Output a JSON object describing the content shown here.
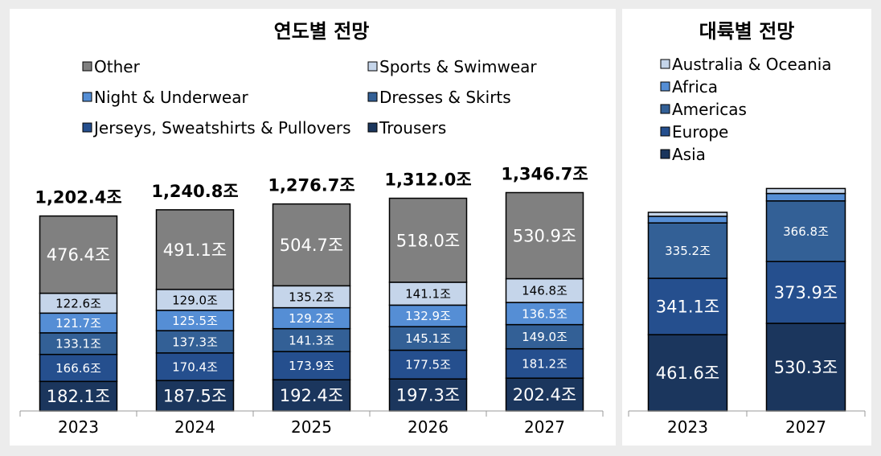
{
  "colors": {
    "Other": "#808080",
    "Sports & Swimwear": "#c5d5ea",
    "Night & Underwear": "#558ed5",
    "Dresses & Skirts": "#336096",
    "Jerseys, Sweatshirts & Pullovers": "#254f8e",
    "Trousers": "#1b365d",
    "Australia & Oceania": "#c5d5ea",
    "Africa": "#558ed5",
    "Americas": "#336096",
    "Europe": "#254f8e",
    "Asia": "#1b365d"
  },
  "chart_data": [
    {
      "type": "bar",
      "stacked": true,
      "title": "연도별 전망",
      "categories": [
        "2023",
        "2024",
        "2025",
        "2026",
        "2027"
      ],
      "series": [
        {
          "name": "Trousers",
          "values": [
            182.1,
            187.5,
            192.4,
            197.3,
            202.4
          ],
          "labels": [
            "182.1조",
            "187.5조",
            "192.4조",
            "197.3조",
            "202.4조"
          ]
        },
        {
          "name": "Jerseys, Sweatshirts & Pullovers",
          "values": [
            166.6,
            170.4,
            173.9,
            177.5,
            181.2
          ],
          "labels": [
            "166.6조",
            "170.4조",
            "173.9조",
            "177.5조",
            "181.2조"
          ]
        },
        {
          "name": "Dresses & Skirts",
          "values": [
            133.1,
            137.3,
            141.3,
            145.1,
            149.0
          ],
          "labels": [
            "133.1조",
            "137.3조",
            "141.3조",
            "145.1조",
            "149.0조"
          ]
        },
        {
          "name": "Night & Underwear",
          "values": [
            121.7,
            125.5,
            129.2,
            132.9,
            136.5
          ],
          "labels": [
            "121.7조",
            "125.5조",
            "129.2조",
            "132.9조",
            "136.5조"
          ]
        },
        {
          "name": "Sports & Swimwear",
          "values": [
            122.6,
            129.0,
            135.2,
            141.1,
            146.8
          ],
          "labels": [
            "122.6조",
            "129.0조",
            "135.2조",
            "141.1조",
            "146.8조"
          ]
        },
        {
          "name": "Other",
          "values": [
            476.4,
            491.1,
            504.7,
            518.0,
            530.9
          ],
          "labels": [
            "476.4조",
            "491.1조",
            "504.7조",
            "518.0조",
            "530.9조"
          ]
        }
      ],
      "totals": [
        "1,202.4조",
        "1,240.8조",
        "1,276.7조",
        "1,312.0조",
        "1,346.7조"
      ],
      "legend": [
        "Other",
        "Sports & Swimwear",
        "Night & Underwear",
        "Dresses & Skirts",
        "Jerseys, Sweatshirts & Pullovers",
        "Trousers"
      ],
      "legend_position": "top",
      "grid": false
    },
    {
      "type": "bar",
      "stacked": true,
      "title": "대륙별 전망",
      "categories": [
        "2023",
        "2027"
      ],
      "series": [
        {
          "name": "Asia",
          "values": [
            461.6,
            530.3
          ],
          "labels": [
            "461.6조",
            "530.3조"
          ]
        },
        {
          "name": "Europe",
          "values": [
            341.1,
            373.9
          ],
          "labels": [
            "341.1조",
            "373.9조"
          ]
        },
        {
          "name": "Americas",
          "values": [
            335.2,
            366.8
          ],
          "labels": [
            "335.2조",
            "366.8조"
          ]
        },
        {
          "name": "Africa",
          "values": [
            40,
            45
          ],
          "labels": [
            "",
            ""
          ]
        },
        {
          "name": "Australia & Oceania",
          "values": [
            24,
            30
          ],
          "labels": [
            "",
            ""
          ]
        }
      ],
      "legend": [
        "Australia & Oceania",
        "Africa",
        "Americas",
        "Europe",
        "Asia"
      ],
      "legend_position": "top-left",
      "grid": false
    }
  ]
}
